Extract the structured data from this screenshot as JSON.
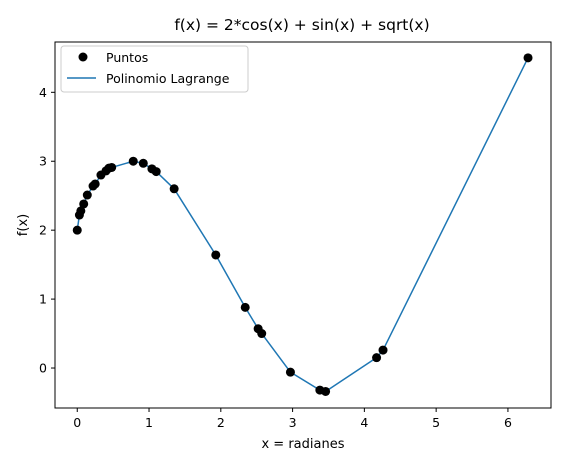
{
  "chart_data": {
    "type": "line",
    "title": "f(x) = 2*cos(x) + sin(x) + sqrt(x)",
    "xlabel": "x = radianes",
    "ylabel": "f(x)",
    "xlim": [
      -0.31,
      6.6
    ],
    "ylim": [
      -0.58,
      4.73
    ],
    "xticks": [
      0,
      1,
      2,
      3,
      4,
      5,
      6
    ],
    "yticks": [
      0,
      1,
      2,
      3,
      4
    ],
    "legend_position": "upper-left",
    "colors": {
      "points": "#000000",
      "line": "#1f77b4"
    },
    "series": [
      {
        "name": "Puntos",
        "kind": "scatter",
        "x": [
          0.0,
          0.03,
          0.05,
          0.09,
          0.14,
          0.22,
          0.25,
          0.33,
          0.4,
          0.44,
          0.48,
          0.78,
          0.92,
          1.04,
          1.1,
          1.35,
          1.93,
          2.34,
          2.52,
          2.57,
          2.97,
          3.38,
          3.46,
          4.17,
          4.26,
          6.28
        ],
        "y": [
          2.0,
          2.22,
          2.28,
          2.38,
          2.51,
          2.64,
          2.67,
          2.8,
          2.86,
          2.9,
          2.91,
          3.0,
          2.97,
          2.89,
          2.85,
          2.6,
          1.64,
          0.88,
          0.57,
          0.5,
          -0.06,
          -0.32,
          -0.34,
          0.15,
          0.26,
          4.5
        ]
      },
      {
        "name": "Polinomio Lagrange",
        "kind": "line",
        "x": [
          0.0,
          0.03,
          0.05,
          0.09,
          0.14,
          0.22,
          0.25,
          0.33,
          0.4,
          0.44,
          0.48,
          0.78,
          0.92,
          1.04,
          1.1,
          1.35,
          1.93,
          2.34,
          2.52,
          2.57,
          2.97,
          3.38,
          3.46,
          4.17,
          4.26,
          6.28
        ],
        "y": [
          2.0,
          2.22,
          2.28,
          2.38,
          2.51,
          2.64,
          2.67,
          2.8,
          2.86,
          2.9,
          2.91,
          3.0,
          2.97,
          2.89,
          2.85,
          2.6,
          1.64,
          0.88,
          0.57,
          0.5,
          -0.06,
          -0.32,
          -0.34,
          0.15,
          0.26,
          4.5
        ]
      }
    ]
  }
}
